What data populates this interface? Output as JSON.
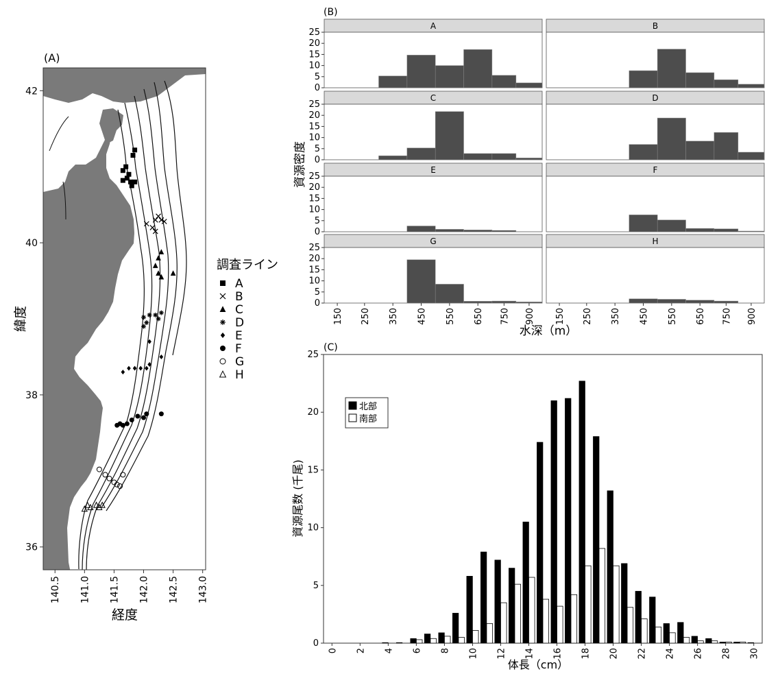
{
  "panel_a": {
    "label": "(A)",
    "xlabel": "経度",
    "ylabel": "緯度",
    "x_ticks": [
      "140.5",
      "141.0",
      "141.5",
      "142.0",
      "142.5",
      "143.0"
    ],
    "y_ticks": [
      "36",
      "38",
      "40",
      "42"
    ],
    "legend_title": "調査ライン",
    "legend": [
      {
        "label": "A",
        "marker": "square"
      },
      {
        "label": "B",
        "marker": "x"
      },
      {
        "label": "C",
        "marker": "triangle"
      },
      {
        "label": "D",
        "marker": "asterisk"
      },
      {
        "label": "E",
        "marker": "diamond"
      },
      {
        "label": "F",
        "marker": "circle"
      },
      {
        "label": "G",
        "marker": "open-circle"
      },
      {
        "label": "H",
        "marker": "open-triangle"
      }
    ],
    "land_color": "#7a7a7a"
  },
  "panel_b": {
    "label": "(B)",
    "xlabel": "水深（m）",
    "ylabel": "資源密度",
    "y_ticks": [
      "0",
      "5",
      "10",
      "15",
      "20",
      "25"
    ],
    "x_ticks": [
      "150",
      "250",
      "350",
      "450",
      "550",
      "650",
      "750",
      "900"
    ],
    "bar_color": "#4d4d4d",
    "strip_color": "#d9d9d9"
  },
  "panel_c": {
    "label": "(C)",
    "xlabel": "体長（cm）",
    "ylabel": "資源尾数 (千尾)",
    "y_ticks": [
      "0",
      "5",
      "10",
      "15",
      "20",
      "25"
    ],
    "x_ticks": [
      "0",
      "2",
      "4",
      "6",
      "8",
      "10",
      "12",
      "14",
      "16",
      "18",
      "20",
      "22",
      "24",
      "26",
      "28",
      "30"
    ],
    "legend": [
      {
        "label": "北部",
        "color": "#000000"
      },
      {
        "label": "南部",
        "color": "#ffffff"
      }
    ]
  },
  "chart_data": [
    {
      "type": "scatter",
      "title": "",
      "xlabel": "経度",
      "ylabel": "緯度",
      "xlim": [
        140.3,
        143.05
      ],
      "ylim": [
        35.7,
        42.3
      ],
      "series": [
        {
          "name": "A",
          "points": [
            [
              141.65,
              40.95
            ],
            [
              141.7,
              41.0
            ],
            [
              141.75,
              40.9
            ],
            [
              141.65,
              40.82
            ],
            [
              141.72,
              40.85
            ],
            [
              141.78,
              40.8
            ],
            [
              141.8,
              40.75
            ],
            [
              141.85,
              40.8
            ],
            [
              141.82,
              41.15
            ],
            [
              141.85,
              41.22
            ]
          ]
        },
        {
          "name": "B",
          "points": [
            [
              142.05,
              40.25
            ],
            [
              142.15,
              40.2
            ],
            [
              142.2,
              40.3
            ],
            [
              142.25,
              40.35
            ],
            [
              142.3,
              40.3
            ],
            [
              142.35,
              40.28
            ],
            [
              142.2,
              40.15
            ]
          ]
        },
        {
          "name": "C",
          "points": [
            [
              142.2,
              39.7
            ],
            [
              142.25,
              39.8
            ],
            [
              142.3,
              39.88
            ],
            [
              142.25,
              39.6
            ],
            [
              142.3,
              39.55
            ],
            [
              142.5,
              39.6
            ]
          ]
        },
        {
          "name": "D",
          "points": [
            [
              142.0,
              39.02
            ],
            [
              142.05,
              38.95
            ],
            [
              142.1,
              39.05
            ],
            [
              142.2,
              39.05
            ],
            [
              142.25,
              39.0
            ],
            [
              142.3,
              39.08
            ],
            [
              142.0,
              38.9
            ]
          ]
        },
        {
          "name": "E",
          "points": [
            [
              141.75,
              38.35
            ],
            [
              141.85,
              38.35
            ],
            [
              141.95,
              38.35
            ],
            [
              142.05,
              38.35
            ],
            [
              142.1,
              38.4
            ],
            [
              142.3,
              38.5
            ],
            [
              142.1,
              38.7
            ],
            [
              141.65,
              38.3
            ]
          ]
        },
        {
          "name": "F",
          "points": [
            [
              141.55,
              37.6
            ],
            [
              141.6,
              37.62
            ],
            [
              141.65,
              37.6
            ],
            [
              141.72,
              37.62
            ],
            [
              141.8,
              37.67
            ],
            [
              141.9,
              37.72
            ],
            [
              142.0,
              37.7
            ],
            [
              142.05,
              37.75
            ],
            [
              142.3,
              37.75
            ]
          ]
        },
        {
          "name": "G",
          "points": [
            [
              141.25,
              37.02
            ],
            [
              141.35,
              36.95
            ],
            [
              141.42,
              36.9
            ],
            [
              141.5,
              36.85
            ],
            [
              141.55,
              36.82
            ],
            [
              141.6,
              36.8
            ],
            [
              141.65,
              36.95
            ]
          ]
        },
        {
          "name": "H",
          "points": [
            [
              141.0,
              36.5
            ],
            [
              141.05,
              36.55
            ],
            [
              141.1,
              36.52
            ],
            [
              141.2,
              36.55
            ],
            [
              141.25,
              36.52
            ],
            [
              141.3,
              36.55
            ]
          ]
        }
      ]
    },
    {
      "type": "bar",
      "title": "",
      "xlabel": "水深（m）",
      "ylabel": "資源密度",
      "ylim": [
        0,
        25
      ],
      "categories": [
        "150",
        "250",
        "350",
        "450",
        "550",
        "650",
        "750",
        "900"
      ],
      "panels": [
        {
          "name": "A",
          "values": [
            0,
            0,
            5.3,
            14.7,
            10.0,
            17.2,
            5.6,
            2.2
          ]
        },
        {
          "name": "B",
          "values": [
            0,
            0,
            0,
            7.7,
            17.4,
            6.8,
            3.6,
            1.6
          ]
        },
        {
          "name": "C",
          "values": [
            0,
            0,
            1.8,
            5.3,
            21.7,
            2.8,
            2.8,
            0.8
          ]
        },
        {
          "name": "D",
          "values": [
            0,
            0,
            0,
            6.9,
            18.8,
            8.4,
            12.3,
            3.4
          ]
        },
        {
          "name": "E",
          "values": [
            0,
            0,
            0,
            2.6,
            1.1,
            0.8,
            0.6,
            0.1
          ]
        },
        {
          "name": "F",
          "values": [
            0,
            0,
            0,
            7.6,
            5.3,
            1.5,
            1.3,
            0.3
          ]
        },
        {
          "name": "G",
          "values": [
            0,
            0,
            0,
            19.5,
            8.5,
            0.8,
            0.9,
            0.5
          ]
        },
        {
          "name": "H",
          "values": [
            0,
            0,
            0,
            1.9,
            1.7,
            1.3,
            0.9,
            0
          ]
        }
      ]
    },
    {
      "type": "bar",
      "title": "",
      "xlabel": "体長（cm）",
      "ylabel": "資源尾数 (千尾)",
      "ylim": [
        0,
        25
      ],
      "x": [
        4,
        5,
        6,
        7,
        8,
        9,
        10,
        11,
        12,
        13,
        14,
        15,
        16,
        17,
        18,
        19,
        20,
        21,
        22,
        23,
        24,
        25,
        26,
        27,
        28,
        29,
        30
      ],
      "series": [
        {
          "name": "北部",
          "values": [
            0.05,
            0.05,
            0.4,
            0.8,
            0.9,
            2.6,
            5.8,
            7.9,
            7.2,
            6.5,
            10.5,
            17.4,
            21.0,
            21.2,
            22.7,
            17.9,
            13.2,
            6.9,
            4.5,
            4.0,
            1.7,
            1.8,
            0.6,
            0.4,
            0.1,
            0.1,
            0.05
          ]
        },
        {
          "name": "南部",
          "values": [
            0,
            0,
            0.3,
            0.4,
            0.6,
            0.5,
            1.1,
            1.7,
            3.5,
            5.1,
            5.7,
            3.8,
            3.2,
            4.2,
            6.7,
            8.2,
            6.7,
            3.1,
            2.1,
            1.4,
            0.9,
            0.5,
            0.2,
            0.2,
            0.1,
            0.1,
            0
          ]
        }
      ]
    }
  ]
}
